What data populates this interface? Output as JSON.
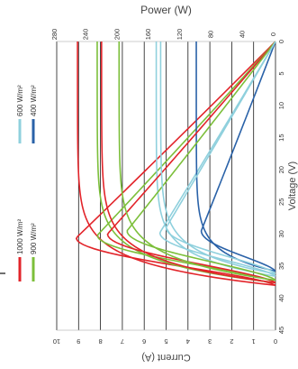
{
  "chart_data": {
    "type": "line",
    "orientation": "rotated-90",
    "x_label": "Voltage (V)",
    "y_label": "Current (A)",
    "y2_label": "Power (W)",
    "x_range": [
      0,
      45
    ],
    "y_range": [
      0,
      10
    ],
    "y2_range": [
      0,
      280
    ],
    "x_ticks": [
      "0",
      "5",
      "10",
      "15",
      "20",
      "25",
      "30",
      "35",
      "40",
      "45"
    ],
    "y_ticks": [
      "0",
      "1",
      "2",
      "3",
      "4",
      "5",
      "6",
      "7",
      "8",
      "9",
      "10"
    ],
    "y2_ticks": [
      "0",
      "40",
      "80",
      "120",
      "160",
      "200",
      "240",
      "280"
    ],
    "grid": true,
    "legend_position": "left",
    "series": [
      {
        "name": "1000 W/m²",
        "color": "#e2242a",
        "voc": 38.0,
        "isc": 9.05,
        "vmp": 30.6,
        "pmax": 255
      },
      {
        "name": "900 W/m²",
        "color": "#7cbf3a",
        "voc": 37.6,
        "isc": 8.15,
        "vmp": 30.2,
        "pmax": 228
      },
      {
        "name": "600 W/m²",
        "color": "#8fd0dd",
        "voc": 36.6,
        "isc": 5.45,
        "vmp": 29.8,
        "pmax": 148
      },
      {
        "name": "400 W/m²",
        "color": "#2a62a8",
        "voc": 35.8,
        "isc": 3.62,
        "vmp": 29.5,
        "pmax": 95
      }
    ],
    "extra_curves": [
      {
        "color": "#e2242a",
        "voc": 37.6,
        "isc": 7.95,
        "vmp": 30.0,
        "pmax": 215
      },
      {
        "color": "#7cbf3a",
        "voc": 37.2,
        "isc": 7.15,
        "vmp": 29.5,
        "pmax": 190
      },
      {
        "color": "#8fd0dd",
        "voc": 36.2,
        "isc": 5.25,
        "vmp": 29.0,
        "pmax": 140
      }
    ]
  }
}
